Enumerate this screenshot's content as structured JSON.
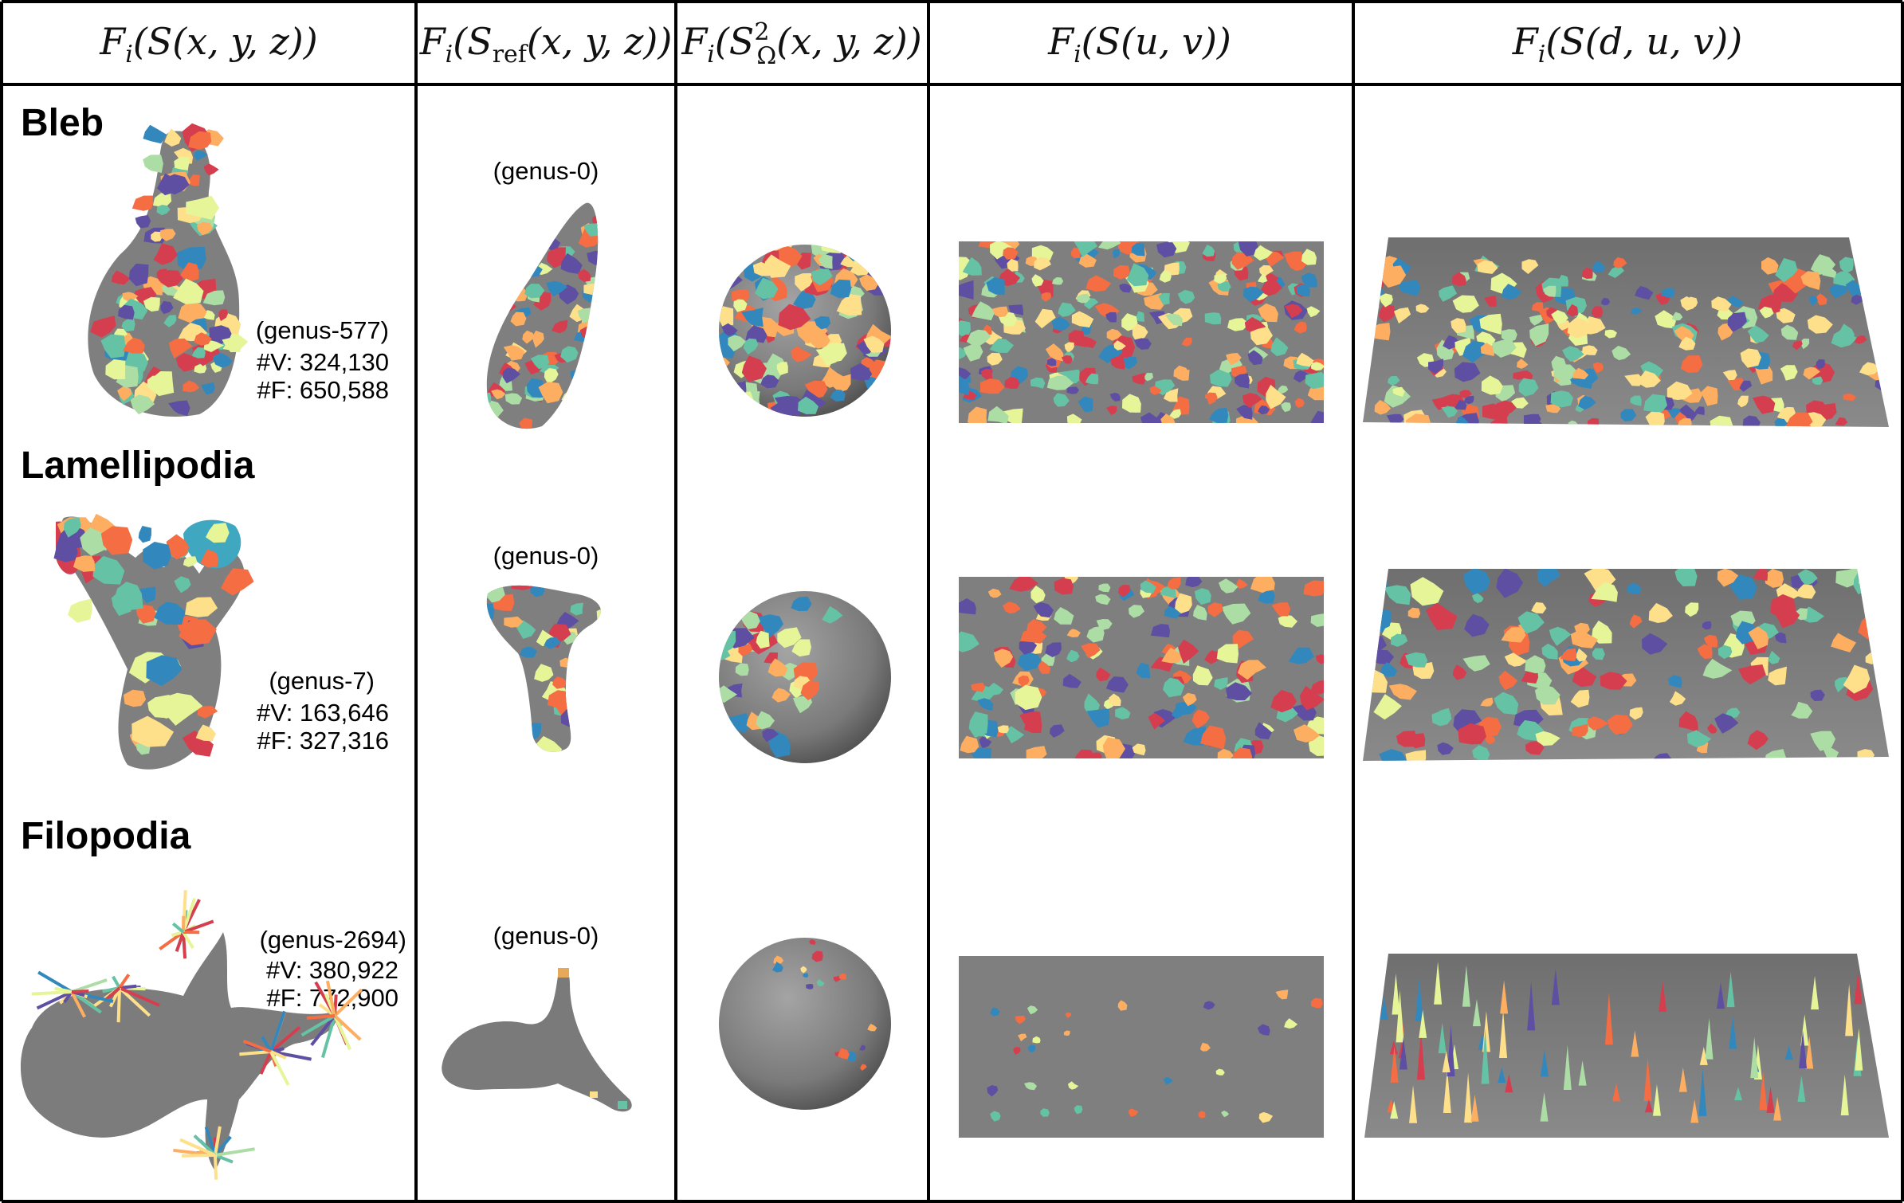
{
  "headers": {
    "col1": {
      "func": "F",
      "sub": "i",
      "arg": "S(x, y, z)"
    },
    "col2": {
      "func": "F",
      "sub": "i",
      "surf": "S",
      "surf_sub": "ref",
      "arg": "(x, y, z)"
    },
    "col3": {
      "func": "F",
      "sub": "i",
      "surf": "S",
      "surf_sup": "2",
      "surf_sub": "Ω",
      "arg": "(x, y, z)"
    },
    "col4": {
      "func": "F",
      "sub": "i",
      "arg": "S(u, v)"
    },
    "col5": {
      "func": "F",
      "sub": "i",
      "arg": "S(d, u, v)"
    }
  },
  "rows": [
    {
      "name": "Bleb",
      "genus": "(genus-577)",
      "vertices": "#V: 324,130",
      "faces": "#F: 650,588",
      "ref_genus": "(genus-0)"
    },
    {
      "name": "Lamellipodia",
      "genus": "(genus-7)",
      "vertices": "#V: 163,646",
      "faces": "#F: 327,316",
      "ref_genus": "(genus-0)"
    },
    {
      "name": "Filopodia",
      "genus": "(genus-2694)",
      "vertices": "#V: 380,922",
      "faces": "#F: 772,900",
      "ref_genus": "(genus-0)"
    }
  ],
  "colors": {
    "surface_gray": "#7f7f7f",
    "patch_palette": [
      "#d53e4f",
      "#f46d43",
      "#fdae61",
      "#fee08b",
      "#e6f598",
      "#abdda4",
      "#66c2a5",
      "#3288bd",
      "#5e4fa2"
    ]
  }
}
